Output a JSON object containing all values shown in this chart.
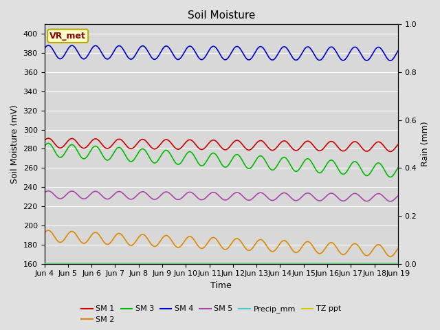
{
  "title": "Soil Moisture",
  "ylabel_left": "Soil Moisture (mV)",
  "ylabel_right": "Rain (mm)",
  "xlabel": "Time",
  "ylim_left": [
    160,
    410
  ],
  "ylim_right": [
    0.0,
    1.0
  ],
  "yticks_left": [
    160,
    180,
    200,
    220,
    240,
    260,
    280,
    300,
    320,
    340,
    360,
    380,
    400
  ],
  "yticks_right": [
    0.0,
    0.2,
    0.4,
    0.6,
    0.8,
    1.0
  ],
  "xtick_labels": [
    "Jun 4",
    "Jun 5",
    "Jun 6",
    "Jun 7",
    "Jun 8",
    "Jun 9",
    "Jun 10",
    "Jun 11",
    "Jun 12",
    "Jun 13",
    "Jun 14",
    "Jun 15",
    "Jun 16",
    "Jun 17",
    "Jun 18",
    "Jun 19"
  ],
  "background_color": "#e0e0e0",
  "plot_bg_color": "#d8d8d8",
  "grid_color": "#ffffff",
  "annotation_text": "VR_met",
  "annotation_bg": "#ffffcc",
  "annotation_border": "#bbaa00",
  "annotation_text_color": "#880000",
  "series": {
    "SM1": {
      "color": "#cc0000",
      "base": 286,
      "amplitude": 5,
      "trend": -4,
      "freq": 1.0
    },
    "SM2": {
      "color": "#dd8800",
      "base": 189,
      "amplitude": 6,
      "trend": -16,
      "freq": 1.0
    },
    "SM3": {
      "color": "#00bb00",
      "base": 279,
      "amplitude": 7,
      "trend": -22,
      "freq": 1.0
    },
    "SM4": {
      "color": "#0000cc",
      "base": 381,
      "amplitude": 7,
      "trend": -2,
      "freq": 1.0
    },
    "SM5": {
      "color": "#aa44aa",
      "base": 232,
      "amplitude": 4,
      "trend": -3,
      "freq": 1.0
    },
    "Precip_mm": {
      "color": "#44cccc"
    },
    "TZ_ppt": {
      "color": "#cccc00"
    }
  },
  "legend_colors": [
    "#cc0000",
    "#dd8800",
    "#00bb00",
    "#0000cc",
    "#aa44aa",
    "#44cccc",
    "#cccc00"
  ],
  "legend_labels": [
    "SM 1",
    "SM 2",
    "SM 3",
    "SM 4",
    "SM 5",
    "Precip_mm",
    "TZ ppt"
  ]
}
